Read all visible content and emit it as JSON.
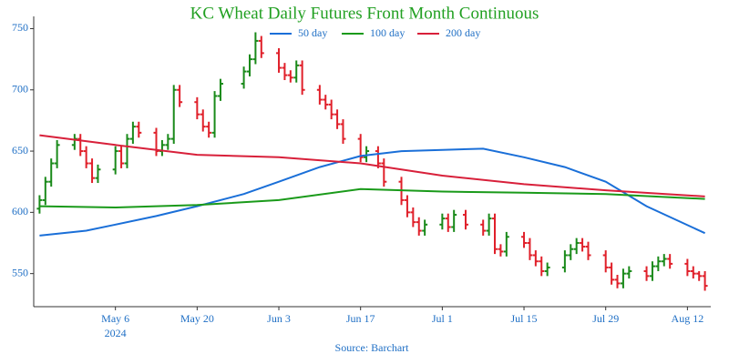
{
  "chart_data": {
    "type": "ohlc",
    "title": "KC Wheat Daily Futures Front Month Continuous",
    "source": "Source: Barchart",
    "x_year_label": "2024",
    "xlim": [
      "2024-04-22",
      "2024-08-16"
    ],
    "xticks": [
      {
        "value": "2024-05-06",
        "label": "May 6"
      },
      {
        "value": "2024-05-20",
        "label": "May 20"
      },
      {
        "value": "2024-06-03",
        "label": "Jun 3"
      },
      {
        "value": "2024-06-17",
        "label": "Jun 17"
      },
      {
        "value": "2024-07-01",
        "label": "Jul 1"
      },
      {
        "value": "2024-07-15",
        "label": "Jul 15"
      },
      {
        "value": "2024-07-29",
        "label": "Jul 29"
      },
      {
        "value": "2024-08-12",
        "label": "Aug 12"
      }
    ],
    "ylim": [
      523,
      760
    ],
    "yticks": [
      550,
      600,
      650,
      700,
      750
    ],
    "up_color": "#1a8a1a",
    "down_color": "#e0202a",
    "x": [
      "2024-04-23",
      "2024-04-24",
      "2024-04-25",
      "2024-04-26",
      "2024-04-29",
      "2024-04-30",
      "2024-05-01",
      "2024-05-02",
      "2024-05-03",
      "2024-05-06",
      "2024-05-07",
      "2024-05-08",
      "2024-05-09",
      "2024-05-10",
      "2024-05-13",
      "2024-05-14",
      "2024-05-15",
      "2024-05-16",
      "2024-05-17",
      "2024-05-20",
      "2024-05-21",
      "2024-05-22",
      "2024-05-23",
      "2024-05-24",
      "2024-05-28",
      "2024-05-29",
      "2024-05-30",
      "2024-05-31",
      "2024-06-03",
      "2024-06-04",
      "2024-06-05",
      "2024-06-06",
      "2024-06-07",
      "2024-06-10",
      "2024-06-11",
      "2024-06-12",
      "2024-06-13",
      "2024-06-14",
      "2024-06-17",
      "2024-06-18",
      "2024-06-20",
      "2024-06-21",
      "2024-06-24",
      "2024-06-25",
      "2024-06-26",
      "2024-06-27",
      "2024-06-28",
      "2024-07-01",
      "2024-07-02",
      "2024-07-03",
      "2024-07-05",
      "2024-07-08",
      "2024-07-09",
      "2024-07-10",
      "2024-07-11",
      "2024-07-12",
      "2024-07-15",
      "2024-07-16",
      "2024-07-17",
      "2024-07-18",
      "2024-07-19",
      "2024-07-22",
      "2024-07-23",
      "2024-07-24",
      "2024-07-25",
      "2024-07-26",
      "2024-07-29",
      "2024-07-30",
      "2024-07-31",
      "2024-08-01",
      "2024-08-02",
      "2024-08-05",
      "2024-08-06",
      "2024-08-07",
      "2024-08-08",
      "2024-08-09",
      "2024-08-12",
      "2024-08-13",
      "2024-08-14",
      "2024-08-15"
    ],
    "open": [
      603,
      610,
      625,
      640,
      655,
      660,
      650,
      640,
      628,
      635,
      650,
      640,
      660,
      670,
      665,
      650,
      655,
      660,
      700,
      690,
      680,
      670,
      665,
      695,
      705,
      715,
      725,
      740,
      730,
      718,
      712,
      710,
      720,
      700,
      692,
      688,
      680,
      672,
      660,
      645,
      650,
      640,
      625,
      610,
      600,
      592,
      585,
      590,
      595,
      588,
      598,
      590,
      585,
      595,
      570,
      568,
      580,
      575,
      565,
      560,
      552,
      555,
      565,
      570,
      575,
      572,
      565,
      555,
      545,
      542,
      550,
      552,
      548,
      556,
      560,
      562,
      558,
      552,
      550,
      548
    ],
    "high": [
      614,
      629,
      644,
      659,
      664,
      664,
      654,
      644,
      639,
      654,
      654,
      664,
      674,
      674,
      669,
      659,
      664,
      704,
      704,
      694,
      684,
      674,
      699,
      709,
      719,
      729,
      747,
      744,
      734,
      722,
      716,
      724,
      724,
      704,
      696,
      692,
      684,
      676,
      664,
      654,
      654,
      644,
      629,
      614,
      604,
      596,
      594,
      599,
      599,
      602,
      602,
      594,
      599,
      599,
      574,
      584,
      584,
      579,
      569,
      564,
      559,
      569,
      574,
      579,
      579,
      576,
      569,
      559,
      549,
      554,
      556,
      556,
      560,
      564,
      566,
      566,
      562,
      556,
      552,
      552
    ],
    "low": [
      599,
      606,
      621,
      636,
      651,
      646,
      636,
      624,
      624,
      631,
      636,
      636,
      656,
      661,
      646,
      646,
      651,
      656,
      686,
      676,
      666,
      661,
      661,
      691,
      701,
      711,
      721,
      726,
      714,
      708,
      706,
      706,
      696,
      688,
      684,
      676,
      668,
      656,
      641,
      641,
      636,
      621,
      606,
      596,
      588,
      581,
      581,
      586,
      584,
      584,
      586,
      581,
      581,
      566,
      564,
      564,
      571,
      561,
      556,
      548,
      548,
      551,
      561,
      566,
      568,
      561,
      551,
      541,
      538,
      538,
      546,
      544,
      544,
      552,
      556,
      554,
      548,
      546,
      544,
      536
    ],
    "close": [
      610,
      625,
      640,
      655,
      660,
      650,
      640,
      628,
      635,
      650,
      640,
      660,
      670,
      665,
      650,
      655,
      660,
      700,
      690,
      680,
      670,
      665,
      695,
      705,
      715,
      725,
      740,
      730,
      718,
      712,
      710,
      720,
      700,
      692,
      688,
      680,
      672,
      660,
      645,
      650,
      640,
      625,
      610,
      600,
      592,
      585,
      590,
      595,
      588,
      598,
      590,
      585,
      595,
      570,
      568,
      580,
      575,
      565,
      560,
      552,
      555,
      565,
      570,
      575,
      572,
      565,
      555,
      545,
      542,
      550,
      552,
      548,
      556,
      560,
      562,
      558,
      552,
      550,
      548,
      540
    ],
    "series": [
      {
        "name": "50 day",
        "color": "#1a6fd8",
        "x": [
          "2024-04-23",
          "2024-05-01",
          "2024-05-06",
          "2024-05-13",
          "2024-05-20",
          "2024-05-28",
          "2024-06-03",
          "2024-06-10",
          "2024-06-17",
          "2024-06-24",
          "2024-07-01",
          "2024-07-08",
          "2024-07-15",
          "2024-07-22",
          "2024-07-29",
          "2024-08-05",
          "2024-08-15"
        ],
        "values": [
          581,
          585,
          590,
          597,
          605,
          615,
          625,
          637,
          646,
          650,
          651,
          652,
          645,
          637,
          625,
          605,
          583
        ]
      },
      {
        "name": "100 day",
        "color": "#1a9a1a",
        "x": [
          "2024-04-23",
          "2024-05-06",
          "2024-05-20",
          "2024-06-03",
          "2024-06-17",
          "2024-07-01",
          "2024-07-15",
          "2024-07-29",
          "2024-08-15"
        ],
        "values": [
          605,
          604,
          606,
          610,
          619,
          617,
          616,
          615,
          611
        ]
      },
      {
        "name": "200 day",
        "color": "#d8203a",
        "x": [
          "2024-04-23",
          "2024-05-06",
          "2024-05-20",
          "2024-06-03",
          "2024-06-17",
          "2024-07-01",
          "2024-07-15",
          "2024-07-29",
          "2024-08-15"
        ],
        "values": [
          663,
          655,
          647,
          645,
          640,
          630,
          623,
          618,
          613
        ]
      }
    ]
  }
}
